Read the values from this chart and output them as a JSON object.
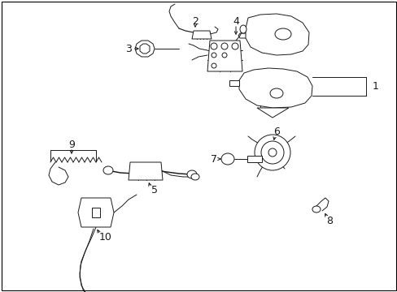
{
  "background_color": "#ffffff",
  "line_color": "#1a1a1a",
  "fig_width": 4.89,
  "fig_height": 3.6,
  "dpi": 100,
  "border_lw": 0.8,
  "part_lw": 0.7
}
